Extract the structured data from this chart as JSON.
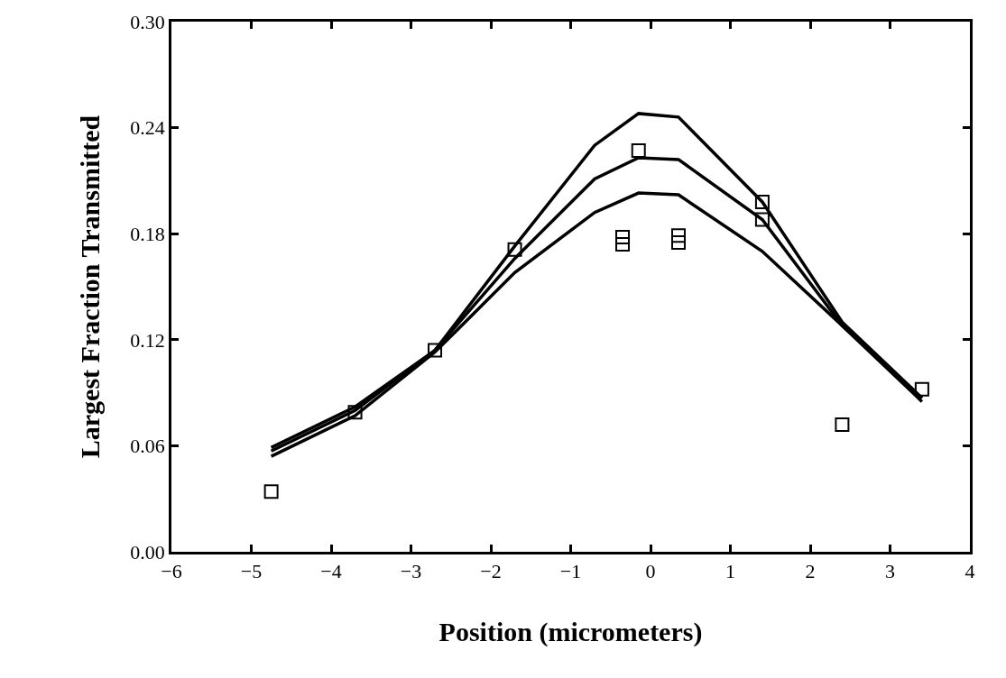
{
  "chart_data": {
    "type": "scatter",
    "xlabel": "Position (micrometers)",
    "ylabel": "Largest Fraction Transmitted",
    "xlim": [
      -6,
      4
    ],
    "xticks": [
      -6,
      -5,
      -4,
      -3,
      -2,
      -1,
      0,
      1,
      2,
      3,
      4
    ],
    "ylim": [
      0,
      0.3
    ],
    "yticks": [
      {
        "value": 0,
        "label": "0.00"
      },
      {
        "value": 0.06,
        "label": "0.06"
      },
      {
        "value": 0.12,
        "label": "0.12"
      },
      {
        "value": 0.18,
        "label": "0.18"
      },
      {
        "value": 0.24,
        "label": "0.24"
      },
      {
        "value": 0.3,
        "label": "0.30"
      }
    ],
    "series": [
      {
        "marker": "square",
        "color": "#000000",
        "x": [
          -4.75,
          -3.7,
          -2.7,
          -1.7,
          -0.35,
          -0.35,
          -0.15,
          0.35,
          0.35,
          1.4,
          1.4,
          2.4,
          3.4
        ],
        "values": [
          0.034,
          0.079,
          0.114,
          0.171,
          0.178,
          0.174,
          0.227,
          0.179,
          0.175,
          0.198,
          0.188,
          0.072,
          0.092
        ]
      },
      {
        "type": "line",
        "marker": "none",
        "color": "#000000",
        "x": [
          -4.75,
          -3.7,
          -2.7,
          -1.7,
          -0.7,
          -0.15,
          0.35,
          1.4,
          2.4,
          3.4
        ],
        "values": [
          0.059,
          0.082,
          0.114,
          0.173,
          0.23,
          0.248,
          0.246,
          0.198,
          0.13,
          0.087
        ]
      },
      {
        "type": "line",
        "marker": "none",
        "color": "#000000",
        "x": [
          -4.75,
          -3.7,
          -2.7,
          -1.7,
          -0.7,
          -0.15,
          0.35,
          1.4,
          2.4,
          3.4
        ],
        "values": [
          0.057,
          0.08,
          0.114,
          0.166,
          0.211,
          0.223,
          0.222,
          0.188,
          0.128,
          0.087
        ]
      },
      {
        "type": "line",
        "marker": "none",
        "color": "#000000",
        "x": [
          -4.75,
          -3.7,
          -2.7,
          -1.7,
          -0.7,
          -0.15,
          0.35,
          1.4,
          2.4,
          3.4
        ],
        "values": [
          0.054,
          0.077,
          0.113,
          0.158,
          0.192,
          0.203,
          0.202,
          0.17,
          0.128,
          0.085
        ]
      }
    ]
  }
}
